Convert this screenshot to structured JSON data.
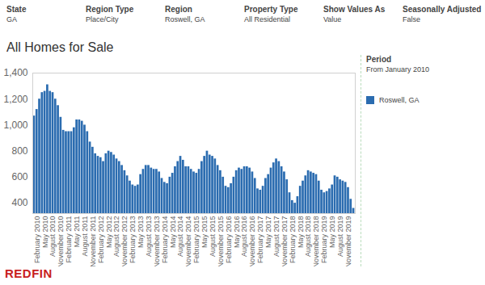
{
  "filters": [
    {
      "label": "State",
      "value": "GA"
    },
    {
      "label": "Region Type",
      "value": "Place/City"
    },
    {
      "label": "Region",
      "value": "Roswell, GA"
    },
    {
      "label": "Property Type",
      "value": "All Residential"
    },
    {
      "label": "Show Values As",
      "value": "Value"
    },
    {
      "label": "Seasonally Adjusted",
      "value": "False"
    }
  ],
  "period": {
    "title": "Period",
    "text": "From January 2010"
  },
  "logo": {
    "text": "REDFIN",
    "color": "#c82021"
  },
  "chart_data": {
    "type": "bar",
    "title": "All Homes for Sale",
    "categories": [
      null,
      "February 2010",
      null,
      null,
      "May 2010",
      null,
      null,
      "August 2010",
      null,
      null,
      "November 2010",
      null,
      null,
      "February 2011",
      null,
      null,
      "May 2011",
      null,
      null,
      "August 2011",
      null,
      null,
      "November 2011",
      null,
      null,
      "February 2012",
      null,
      null,
      "May 2012",
      null,
      null,
      "August 2012",
      null,
      null,
      "November 2012",
      null,
      null,
      "February 2013",
      null,
      null,
      "May 2013",
      null,
      null,
      "August 2013",
      null,
      null,
      "November 2013",
      null,
      null,
      "February 2014",
      null,
      null,
      "May 2014",
      null,
      null,
      "August 2014",
      null,
      null,
      "November 2014",
      null,
      null,
      "February 2015",
      null,
      null,
      "May 2015",
      null,
      null,
      "August 2015",
      null,
      null,
      "November 2015",
      null,
      null,
      "February 2016",
      null,
      null,
      "May 2016",
      null,
      null,
      "August 2016",
      null,
      null,
      "November 2016",
      null,
      null,
      "February 2017",
      null,
      null,
      "May 2017",
      null,
      null,
      "August 2017",
      null,
      null,
      "November 2017",
      null,
      null,
      "February 2018",
      null,
      null,
      "May 2018",
      null,
      null,
      "August 2018",
      null,
      null,
      "November 2018",
      null,
      null,
      "February 2019",
      null,
      null,
      "May 2019",
      null,
      null,
      "August 2019",
      null,
      null,
      "November 2019",
      null,
      null
    ],
    "series": [
      {
        "name": "Roswell, GA",
        "color": "#2b6cb0",
        "values": [
          1070,
          1120,
          1200,
          1250,
          1260,
          1310,
          1260,
          1250,
          1200,
          1150,
          1060,
          960,
          950,
          950,
          950,
          980,
          1040,
          1040,
          1030,
          1000,
          950,
          870,
          830,
          780,
          760,
          750,
          720,
          780,
          800,
          790,
          770,
          740,
          720,
          690,
          650,
          610,
          570,
          540,
          530,
          540,
          620,
          660,
          690,
          690,
          670,
          660,
          660,
          640,
          590,
          560,
          550,
          600,
          630,
          680,
          720,
          760,
          730,
          680,
          680,
          660,
          640,
          630,
          660,
          720,
          760,
          800,
          770,
          760,
          740,
          690,
          650,
          600,
          530,
          520,
          550,
          600,
          650,
          670,
          660,
          680,
          680,
          670,
          640,
          590,
          510,
          500,
          530,
          590,
          620,
          670,
          710,
          740,
          720,
          680,
          640,
          580,
          480,
          420,
          400,
          450,
          530,
          570,
          610,
          650,
          640,
          630,
          620,
          570,
          500,
          480,
          490,
          510,
          540,
          610,
          600,
          580,
          570,
          560,
          520,
          430,
          360
        ]
      }
    ],
    "ylim": [
      320,
      1400
    ],
    "yticks": [
      400,
      600,
      800,
      1000,
      1200,
      1400
    ],
    "grid": false,
    "legend": "right"
  }
}
